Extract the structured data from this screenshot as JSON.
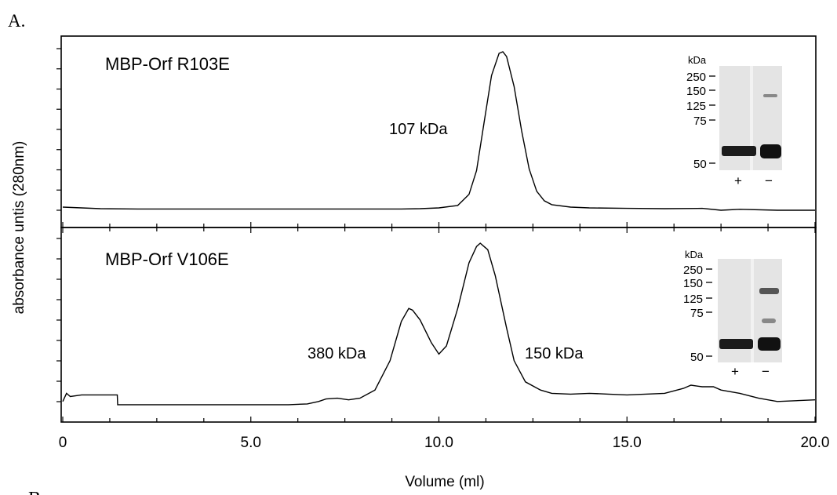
{
  "figure_label": "A.",
  "next_panel_label": "B",
  "chart_data": [
    {
      "type": "line",
      "title": "MBP-Orf R103E",
      "xlabel": "Volume (ml)",
      "ylabel": "absorbance untis (280nm)",
      "xlim": [
        0,
        20
      ],
      "ylim": [
        0,
        1
      ],
      "grid": false,
      "x": [
        0,
        1,
        2,
        3,
        4,
        5,
        6,
        7,
        8,
        9,
        9.5,
        10,
        10.5,
        10.8,
        11.0,
        11.2,
        11.4,
        11.6,
        11.7,
        11.8,
        12.0,
        12.2,
        12.4,
        12.6,
        12.8,
        13.0,
        13.5,
        14,
        15,
        16,
        17,
        17.5,
        18,
        19,
        20
      ],
      "y": [
        0.02,
        0.01,
        0.008,
        0.008,
        0.008,
        0.008,
        0.008,
        0.008,
        0.008,
        0.008,
        0.01,
        0.015,
        0.03,
        0.1,
        0.25,
        0.55,
        0.85,
        0.99,
        1.0,
        0.97,
        0.78,
        0.5,
        0.26,
        0.12,
        0.06,
        0.035,
        0.02,
        0.015,
        0.012,
        0.01,
        0.012,
        0.0,
        0.006,
        0.0,
        0.0
      ],
      "annotations": [
        {
          "text": "107 kDa",
          "x": 10.1,
          "y": 0.55
        }
      ],
      "inset_gel": {
        "unit_label": "kDa",
        "markers": [
          "250",
          "150",
          "125",
          "75",
          "50"
        ],
        "lanes": [
          "+",
          "−"
        ]
      }
    },
    {
      "type": "line",
      "title": "MBP-Orf V106E",
      "xlabel": "Volume (ml)",
      "ylabel": "absorbance untis (280nm)",
      "xlim": [
        0,
        20
      ],
      "ylim": [
        0,
        1
      ],
      "grid": false,
      "x_ticks": [
        "0",
        "5.0",
        "10.0",
        "15.0",
        "20.0"
      ],
      "x": [
        0.0,
        0.1,
        0.2,
        0.5,
        1.0,
        1.45,
        1.46,
        2,
        3,
        4,
        5,
        6,
        6.5,
        6.8,
        7.0,
        7.3,
        7.6,
        7.9,
        8.3,
        8.7,
        9.0,
        9.2,
        9.3,
        9.5,
        9.8,
        10.0,
        10.2,
        10.5,
        10.8,
        11.0,
        11.1,
        11.2,
        11.3,
        11.5,
        11.8,
        12.0,
        12.3,
        12.7,
        13.0,
        13.5,
        14,
        14.5,
        15,
        16,
        16.5,
        16.7,
        17.0,
        17.3,
        17.5,
        18,
        18.5,
        19,
        20
      ],
      "y": [
        0.03,
        0.08,
        0.06,
        0.07,
        0.07,
        0.07,
        0.01,
        0.01,
        0.01,
        0.01,
        0.01,
        0.01,
        0.015,
        0.03,
        0.045,
        0.05,
        0.04,
        0.05,
        0.1,
        0.28,
        0.52,
        0.6,
        0.59,
        0.53,
        0.39,
        0.32,
        0.37,
        0.6,
        0.88,
        0.98,
        1.0,
        0.98,
        0.96,
        0.8,
        0.48,
        0.28,
        0.15,
        0.1,
        0.08,
        0.075,
        0.08,
        0.075,
        0.07,
        0.08,
        0.11,
        0.13,
        0.12,
        0.12,
        0.1,
        0.08,
        0.05,
        0.03,
        0.04
      ],
      "annotations": [
        {
          "text": "380 kDa",
          "x": 7.5,
          "y": 0.38
        },
        {
          "text": "150 kDa",
          "x": 11.8,
          "y": 0.38
        }
      ],
      "inset_gel": {
        "unit_label": "kDa",
        "markers": [
          "250",
          "150",
          "125",
          "75",
          "50"
        ],
        "lanes": [
          "+",
          "−"
        ]
      }
    }
  ]
}
